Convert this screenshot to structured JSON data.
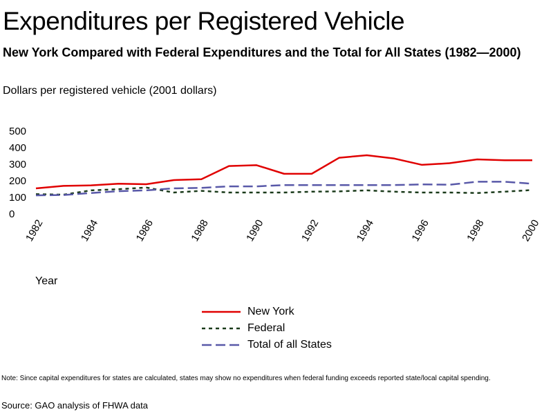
{
  "chart_data": {
    "type": "line",
    "title": "Expenditures per Registered Vehicle",
    "subtitle": "New York Compared with Federal Expenditures and the Total for All States (1982—2000)",
    "ylabel": "Dollars per registered vehicle (2001 dollars)",
    "xlabel": "Year",
    "ylim": [
      0,
      500
    ],
    "yticks": [
      0,
      100,
      200,
      300,
      400,
      500
    ],
    "xticks": [
      1982,
      1984,
      1986,
      1988,
      1990,
      1992,
      1994,
      1996,
      1998,
      2000
    ],
    "xlim": [
      1982,
      2000
    ],
    "grid": false,
    "legend_position": "bottom",
    "x": [
      1982,
      1983,
      1984,
      1985,
      1986,
      1987,
      1988,
      1989,
      1990,
      1991,
      1992,
      1993,
      1994,
      1995,
      1996,
      1997,
      1998,
      1999,
      2000
    ],
    "series": [
      {
        "name": "New York",
        "color": "#e00000",
        "style": "solid",
        "values": [
          150,
          165,
          168,
          178,
          175,
          200,
          205,
          285,
          290,
          238,
          238,
          335,
          350,
          330,
          292,
          302,
          325,
          320,
          320
        ]
      },
      {
        "name": "Federal",
        "color": "#1a3a1a",
        "style": "dotted",
        "values": [
          115,
          112,
          138,
          145,
          155,
          125,
          135,
          125,
          125,
          125,
          130,
          132,
          138,
          130,
          125,
          125,
          122,
          130,
          140
        ]
      },
      {
        "name": "Total of all States",
        "color": "#5858a8",
        "style": "dashed",
        "values": [
          108,
          110,
          122,
          133,
          138,
          150,
          153,
          162,
          162,
          170,
          170,
          170,
          170,
          170,
          174,
          172,
          190,
          190,
          178
        ]
      }
    ]
  },
  "note": "Note:  Since capital expenditures for states are calculated, states may show no expenditures when federal funding exceeds reported state/local capital spending.",
  "source": "Source: GAO analysis of FHWA data"
}
